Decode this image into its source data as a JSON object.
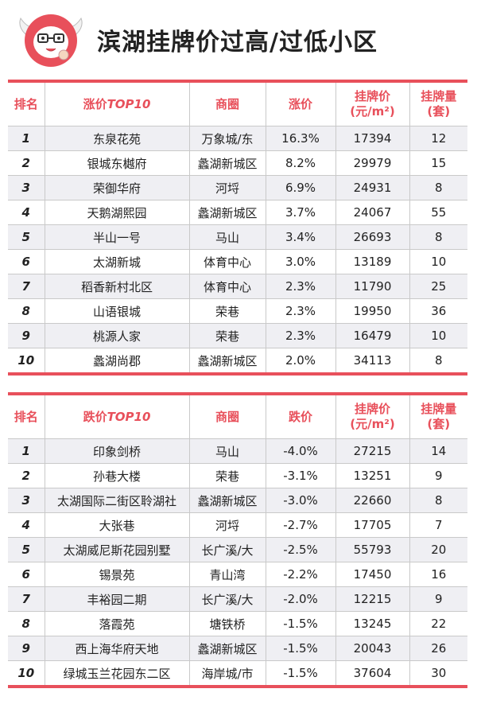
{
  "title": "滨湖挂牌价过高/过低小区",
  "accent_color": "#e8505b",
  "logo_icon": "mascot-logo",
  "rise_table": {
    "headers": {
      "rank": "排名",
      "name_prefix": "涨价",
      "name_suffix": "TOP10",
      "district": "商圈",
      "change": "涨价",
      "price_line1": "挂牌价",
      "price_line2": "(元/m²)",
      "volume_line1": "挂牌量",
      "volume_line2": "(套)"
    },
    "rows": [
      {
        "rank": "1",
        "name": "东泉花苑",
        "district": "万象城/东",
        "change": "16.3%",
        "price": "17394",
        "volume": "12"
      },
      {
        "rank": "2",
        "name": "银城东樾府",
        "district": "蠡湖新城区",
        "change": "8.2%",
        "price": "29979",
        "volume": "15"
      },
      {
        "rank": "3",
        "name": "荣御华府",
        "district": "河埒",
        "change": "6.9%",
        "price": "24931",
        "volume": "8"
      },
      {
        "rank": "4",
        "name": "天鹅湖熙园",
        "district": "蠡湖新城区",
        "change": "3.7%",
        "price": "24067",
        "volume": "55"
      },
      {
        "rank": "5",
        "name": "半山一号",
        "district": "马山",
        "change": "3.4%",
        "price": "26693",
        "volume": "8"
      },
      {
        "rank": "6",
        "name": "太湖新城",
        "district": "体育中心",
        "change": "3.0%",
        "price": "13189",
        "volume": "10"
      },
      {
        "rank": "7",
        "name": "稻香新村北区",
        "district": "体育中心",
        "change": "2.3%",
        "price": "11790",
        "volume": "25"
      },
      {
        "rank": "8",
        "name": "山语银城",
        "district": "荣巷",
        "change": "2.3%",
        "price": "19950",
        "volume": "36"
      },
      {
        "rank": "9",
        "name": "桃源人家",
        "district": "荣巷",
        "change": "2.3%",
        "price": "16479",
        "volume": "10"
      },
      {
        "rank": "10",
        "name": "蠡湖尚郡",
        "district": "蠡湖新城区",
        "change": "2.0%",
        "price": "34113",
        "volume": "8"
      }
    ]
  },
  "fall_table": {
    "headers": {
      "rank": "排名",
      "name_prefix": "跌价",
      "name_suffix": "TOP10",
      "district": "商圈",
      "change": "跌价",
      "price_line1": "挂牌价",
      "price_line2": "(元/m²)",
      "volume_line1": "挂牌量",
      "volume_line2": "(套)"
    },
    "rows": [
      {
        "rank": "1",
        "name": "印象剑桥",
        "district": "马山",
        "change": "-4.0%",
        "price": "27215",
        "volume": "14"
      },
      {
        "rank": "2",
        "name": "孙巷大楼",
        "district": "荣巷",
        "change": "-3.1%",
        "price": "13251",
        "volume": "9"
      },
      {
        "rank": "3",
        "name": "太湖国际二街区聆湖社",
        "district": "蠡湖新城区",
        "change": "-3.0%",
        "price": "22660",
        "volume": "8"
      },
      {
        "rank": "4",
        "name": "大张巷",
        "district": "河埒",
        "change": "-2.7%",
        "price": "17705",
        "volume": "7"
      },
      {
        "rank": "5",
        "name": "太湖威尼斯花园别墅",
        "district": "长广溪/大",
        "change": "-2.5%",
        "price": "55793",
        "volume": "20"
      },
      {
        "rank": "6",
        "name": "锡景苑",
        "district": "青山湾",
        "change": "-2.2%",
        "price": "17450",
        "volume": "16"
      },
      {
        "rank": "7",
        "name": "丰裕园二期",
        "district": "长广溪/大",
        "change": "-2.0%",
        "price": "12215",
        "volume": "9"
      },
      {
        "rank": "8",
        "name": "落霞苑",
        "district": "塘铁桥",
        "change": "-1.5%",
        "price": "13245",
        "volume": "22"
      },
      {
        "rank": "9",
        "name": "西上海华府天地",
        "district": "蠡湖新城区",
        "change": "-1.5%",
        "price": "20043",
        "volume": "26"
      },
      {
        "rank": "10",
        "name": "绿城玉兰花园东二区",
        "district": "海岸城/市",
        "change": "-1.5%",
        "price": "37604",
        "volume": "30"
      }
    ]
  }
}
